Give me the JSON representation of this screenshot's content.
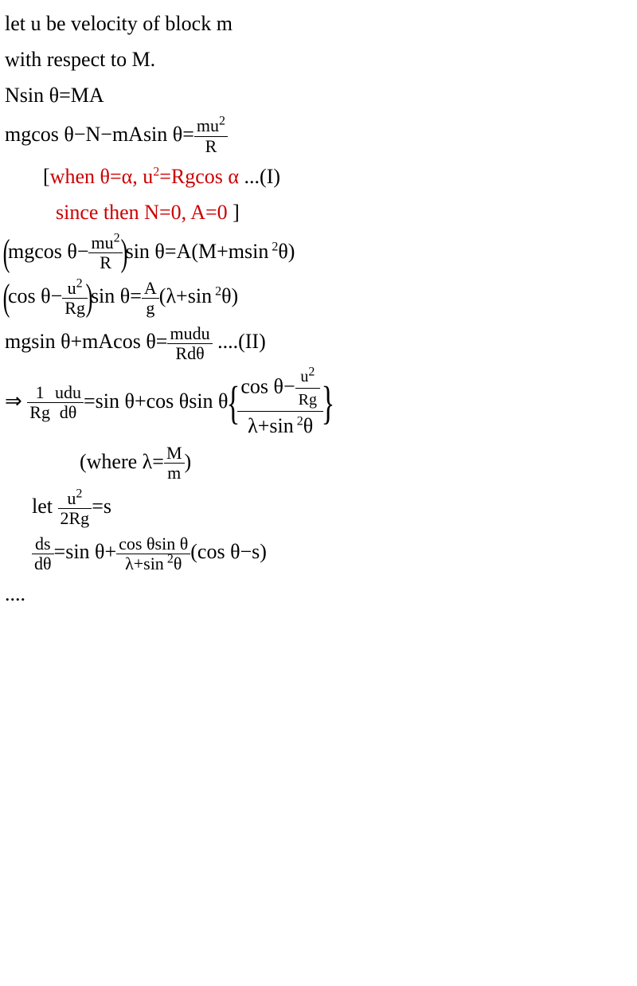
{
  "lines": {
    "l1": "let u be velocity of block m",
    "l2": "with respect to M.",
    "l3_before": "Nsin θ=MA",
    "l4_before": "mgcos θ−N−mAsin θ=",
    "l4_frac_num": "mu",
    "l4_frac_den": "R",
    "l5_a": "[",
    "l5_b": "when θ=α,   u",
    "l5_c": "=Rgcos α",
    "l5_d": "   ...(I)",
    "l6_a": " since then N=0, A=0 ",
    "l6_b": "]",
    "l7_before": "mgcos θ−",
    "l7_frac_num": "mu",
    "l7_frac_den": "R",
    "l7_after": "sin θ=A(M+msin",
    "l7_tail": "θ)",
    "l8_before": "cos θ−",
    "l8_frac_num": "u",
    "l8_frac_den": "Rg",
    "l8_mid": "sin θ=",
    "l8_frac2_num": "A",
    "l8_frac2_den": "g",
    "l8_after": "(λ+sin",
    "l8_tail": "θ)",
    "l9_before": "mgsin θ+mAcos θ=",
    "l9_frac_num": "mudu",
    "l9_frac_den": "Rdθ",
    "l9_after": "  ....(II)",
    "l10_arrow": "⇒  ",
    "l10_frac_num": "1",
    "l10_frac_den": "Rg",
    "l10_frac2_num": "udu",
    "l10_frac2_den": " dθ",
    "l10_mid": "=sin θ+cos θsin θ",
    "l10_big_top_a": "cos θ−",
    "l10_big_top_num": "u",
    "l10_big_top_den": "Rg",
    "l10_big_bot_a": "λ+sin",
    "l10_big_bot_b": "θ",
    "l11_a": "(where   λ=",
    "l11_frac_num": "M",
    "l11_frac_den": "m",
    "l11_b": ")",
    "l12_a": "let  ",
    "l12_frac_num": "u",
    "l12_frac_den": "2Rg",
    "l12_b": "=s",
    "l13_frac_num": "ds",
    "l13_frac_den": "dθ",
    "l13_a": "=sin θ+",
    "l13_frac2_num": "cos θsin θ",
    "l13_frac2_den_a": "λ+sin",
    "l13_frac2_den_b": "θ",
    "l13_b": "(cos θ−s)",
    "l14": "...."
  },
  "sup2": "2",
  "space2": " 2"
}
